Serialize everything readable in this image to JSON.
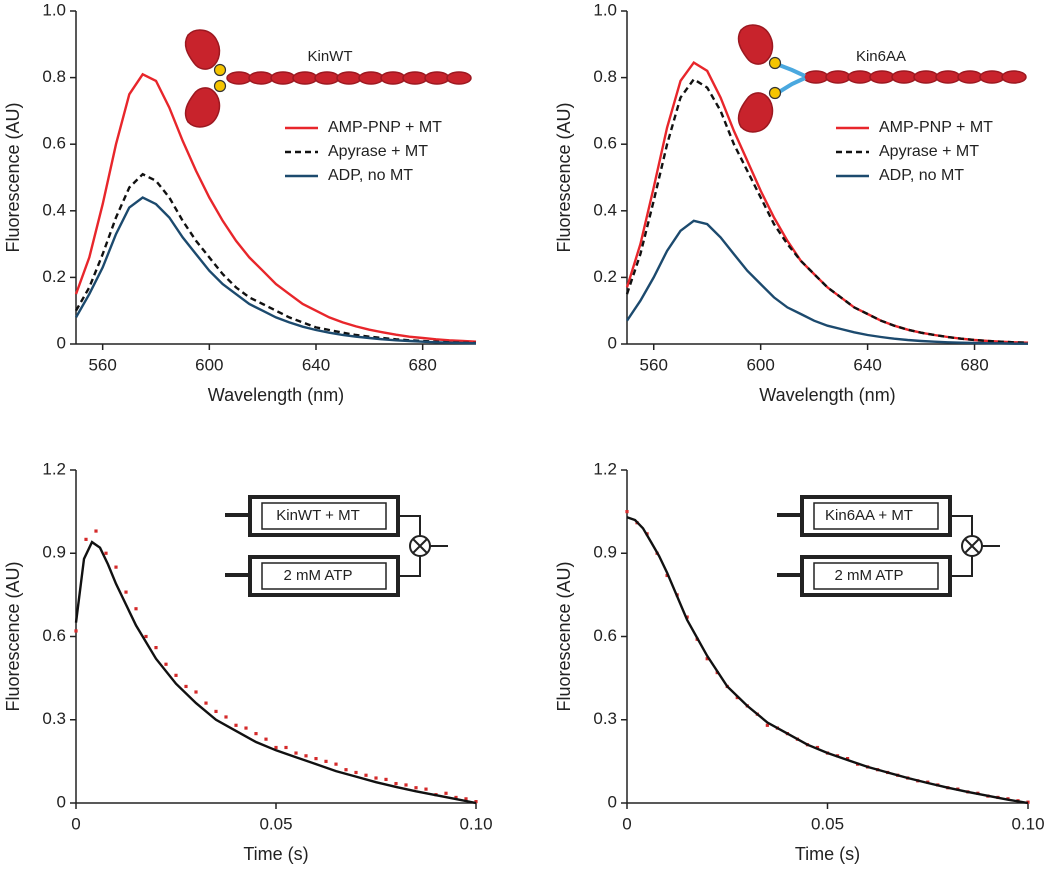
{
  "chart_data": [
    {
      "type": "line",
      "xlabel": "Wavelength (nm)",
      "ylabel": "Fluorescence (AU)",
      "annotations": [
        "KinWT"
      ],
      "legend": "right",
      "xlim": [
        550,
        700
      ],
      "xticks": [
        560,
        600,
        640,
        680
      ],
      "ylim": [
        0,
        1
      ],
      "yticks": [
        0,
        0.2,
        0.4,
        0.6,
        0.8,
        {
          "value": 1,
          "label": "1.0"
        }
      ],
      "x": [
        550,
        555,
        560,
        565,
        570,
        575,
        580,
        585,
        590,
        595,
        600,
        605,
        610,
        615,
        620,
        625,
        630,
        635,
        640,
        645,
        650,
        655,
        660,
        665,
        670,
        675,
        680,
        685,
        690,
        695,
        700
      ],
      "series": [
        {
          "name": "AMP-PNP + MT",
          "color": "#e8262b",
          "style": "solid",
          "values": [
            0.15,
            0.26,
            0.42,
            0.6,
            0.75,
            0.81,
            0.79,
            0.71,
            0.61,
            0.52,
            0.44,
            0.37,
            0.31,
            0.26,
            0.22,
            0.18,
            0.15,
            0.12,
            0.1,
            0.08,
            0.065,
            0.053,
            0.043,
            0.035,
            0.028,
            0.022,
            0.018,
            0.014,
            0.011,
            0.009,
            0.007
          ]
        },
        {
          "name": "Apyrase + MT",
          "color": "#111111",
          "style": "dashed",
          "values": [
            0.1,
            0.17,
            0.27,
            0.38,
            0.47,
            0.51,
            0.49,
            0.44,
            0.37,
            0.31,
            0.26,
            0.21,
            0.17,
            0.14,
            0.12,
            0.1,
            0.08,
            0.065,
            0.05,
            0.042,
            0.034,
            0.027,
            0.022,
            0.018,
            0.014,
            0.011,
            0.009,
            0.007,
            0.005,
            0.004,
            0.003
          ]
        },
        {
          "name": "ADP, no MT",
          "color": "#1c4a6e",
          "style": "solid",
          "values": [
            0.08,
            0.15,
            0.23,
            0.33,
            0.41,
            0.44,
            0.42,
            0.38,
            0.32,
            0.27,
            0.22,
            0.18,
            0.15,
            0.12,
            0.1,
            0.08,
            0.065,
            0.052,
            0.042,
            0.034,
            0.027,
            0.022,
            0.018,
            0.014,
            0.011,
            0.009,
            0.007,
            0.005,
            0.004,
            0.003,
            0.002
          ]
        }
      ]
    },
    {
      "type": "line",
      "xlabel": "Wavelength (nm)",
      "ylabel": "Fluorescence (AU)",
      "annotations": [
        "Kin6AA"
      ],
      "legend": "right",
      "xlim": [
        550,
        700
      ],
      "xticks": [
        560,
        600,
        640,
        680
      ],
      "ylim": [
        0,
        1
      ],
      "yticks": [
        0,
        0.2,
        0.4,
        0.6,
        0.8,
        {
          "value": 1,
          "label": "1.0"
        }
      ],
      "x": [
        550,
        555,
        560,
        565,
        570,
        575,
        580,
        585,
        590,
        595,
        600,
        605,
        610,
        615,
        620,
        625,
        630,
        635,
        640,
        645,
        650,
        655,
        660,
        665,
        670,
        675,
        680,
        685,
        690,
        695,
        700
      ],
      "series": [
        {
          "name": "AMP-PNP + MT",
          "color": "#e8262b",
          "style": "solid",
          "values": [
            0.17,
            0.3,
            0.47,
            0.65,
            0.79,
            0.845,
            0.82,
            0.74,
            0.64,
            0.55,
            0.46,
            0.38,
            0.31,
            0.25,
            0.21,
            0.17,
            0.14,
            0.11,
            0.09,
            0.07,
            0.055,
            0.043,
            0.034,
            0.027,
            0.021,
            0.016,
            0.012,
            0.009,
            0.007,
            0.005,
            0.004
          ]
        },
        {
          "name": "Apyrase + MT",
          "color": "#111111",
          "style": "dashed",
          "values": [
            0.15,
            0.27,
            0.43,
            0.6,
            0.74,
            0.795,
            0.77,
            0.7,
            0.6,
            0.52,
            0.44,
            0.36,
            0.3,
            0.25,
            0.21,
            0.17,
            0.14,
            0.11,
            0.09,
            0.07,
            0.055,
            0.043,
            0.034,
            0.027,
            0.021,
            0.016,
            0.012,
            0.009,
            0.007,
            0.005,
            0.004
          ]
        },
        {
          "name": "ADP, no MT",
          "color": "#1c4a6e",
          "style": "solid",
          "values": [
            0.07,
            0.13,
            0.2,
            0.28,
            0.34,
            0.37,
            0.36,
            0.32,
            0.27,
            0.22,
            0.18,
            0.14,
            0.11,
            0.09,
            0.07,
            0.055,
            0.045,
            0.035,
            0.027,
            0.021,
            0.016,
            0.012,
            0.009,
            0.007,
            0.005,
            0.004,
            0.003,
            0.002,
            0.002,
            0.001,
            0.001
          ]
        }
      ]
    },
    {
      "type": "scatter",
      "xlabel": "Time (s)",
      "ylabel": "Fluorescence (AU)",
      "annotations": [
        "KinWT + MT",
        "2 mM ATP"
      ],
      "xlim": [
        0,
        0.1
      ],
      "xticks": [
        0,
        0.05,
        {
          "value": 0.1,
          "label": "0.10"
        }
      ],
      "ylim": [
        0,
        1.2
      ],
      "yticks": [
        0,
        0.3,
        0.6,
        0.9,
        1.2
      ],
      "series": [
        {
          "mode": "markers",
          "color": "#d42a2a",
          "x": [
            0,
            0.0025,
            0.005,
            0.0075,
            0.01,
            0.0125,
            0.015,
            0.0175,
            0.02,
            0.0225,
            0.025,
            0.0275,
            0.03,
            0.0325,
            0.035,
            0.0375,
            0.04,
            0.0425,
            0.045,
            0.0475,
            0.05,
            0.0525,
            0.055,
            0.0575,
            0.06,
            0.0625,
            0.065,
            0.0675,
            0.07,
            0.0725,
            0.075,
            0.0775,
            0.08,
            0.0825,
            0.085,
            0.0875,
            0.09,
            0.0925,
            0.095,
            0.0975,
            0.1
          ],
          "values": [
            0.62,
            0.95,
            0.98,
            0.9,
            0.85,
            0.76,
            0.7,
            0.6,
            0.56,
            0.5,
            0.46,
            0.42,
            0.4,
            0.36,
            0.33,
            0.31,
            0.28,
            0.27,
            0.25,
            0.23,
            0.2,
            0.2,
            0.18,
            0.17,
            0.16,
            0.15,
            0.14,
            0.12,
            0.11,
            0.1,
            0.09,
            0.085,
            0.07,
            0.065,
            0.055,
            0.05,
            0.03,
            0.035,
            0.02,
            0.015,
            0.005
          ]
        },
        {
          "mode": "line",
          "color": "#111111",
          "x": [
            0,
            0.002,
            0.004,
            0.006,
            0.008,
            0.01,
            0.015,
            0.02,
            0.025,
            0.03,
            0.035,
            0.04,
            0.045,
            0.05,
            0.055,
            0.06,
            0.065,
            0.07,
            0.075,
            0.08,
            0.085,
            0.09,
            0.095,
            0.1
          ],
          "values": [
            0.65,
            0.88,
            0.94,
            0.92,
            0.86,
            0.79,
            0.64,
            0.52,
            0.43,
            0.36,
            0.3,
            0.26,
            0.22,
            0.19,
            0.165,
            0.14,
            0.115,
            0.095,
            0.075,
            0.058,
            0.042,
            0.028,
            0.014,
            0
          ]
        }
      ]
    },
    {
      "type": "scatter",
      "xlabel": "Time (s)",
      "ylabel": "Fluorescence (AU)",
      "annotations": [
        "Kin6AA + MT",
        "2 mM ATP"
      ],
      "xlim": [
        0,
        0.1
      ],
      "xticks": [
        0,
        0.05,
        {
          "value": 0.1,
          "label": "0.10"
        }
      ],
      "ylim": [
        0,
        1.2
      ],
      "yticks": [
        0,
        0.3,
        0.6,
        0.9,
        1.2
      ],
      "series": [
        {
          "mode": "markers",
          "color": "#d42a2a",
          "x": [
            0,
            0.0025,
            0.005,
            0.0075,
            0.01,
            0.0125,
            0.015,
            0.0175,
            0.02,
            0.0225,
            0.025,
            0.0275,
            0.03,
            0.0325,
            0.035,
            0.0375,
            0.04,
            0.0425,
            0.045,
            0.0475,
            0.05,
            0.0525,
            0.055,
            0.0575,
            0.06,
            0.0625,
            0.065,
            0.0675,
            0.07,
            0.0725,
            0.075,
            0.0775,
            0.08,
            0.0825,
            0.085,
            0.0875,
            0.09,
            0.0925,
            0.095,
            0.0975,
            0.1
          ],
          "values": [
            1.05,
            1.01,
            0.97,
            0.9,
            0.82,
            0.75,
            0.67,
            0.59,
            0.52,
            0.47,
            0.42,
            0.38,
            0.35,
            0.32,
            0.28,
            0.27,
            0.25,
            0.23,
            0.21,
            0.2,
            0.18,
            0.17,
            0.16,
            0.14,
            0.13,
            0.12,
            0.11,
            0.1,
            0.09,
            0.08,
            0.075,
            0.065,
            0.055,
            0.05,
            0.04,
            0.035,
            0.025,
            0.02,
            0.015,
            0.008,
            0.003
          ]
        },
        {
          "mode": "line",
          "color": "#111111",
          "x": [
            0,
            0.002,
            0.004,
            0.006,
            0.008,
            0.01,
            0.015,
            0.02,
            0.025,
            0.03,
            0.035,
            0.04,
            0.045,
            0.05,
            0.055,
            0.06,
            0.065,
            0.07,
            0.075,
            0.08,
            0.085,
            0.09,
            0.095,
            0.1
          ],
          "values": [
            1.03,
            1.02,
            0.99,
            0.94,
            0.89,
            0.83,
            0.66,
            0.53,
            0.42,
            0.35,
            0.29,
            0.25,
            0.21,
            0.18,
            0.155,
            0.13,
            0.11,
            0.09,
            0.072,
            0.055,
            0.04,
            0.026,
            0.012,
            0
          ]
        }
      ]
    }
  ]
}
